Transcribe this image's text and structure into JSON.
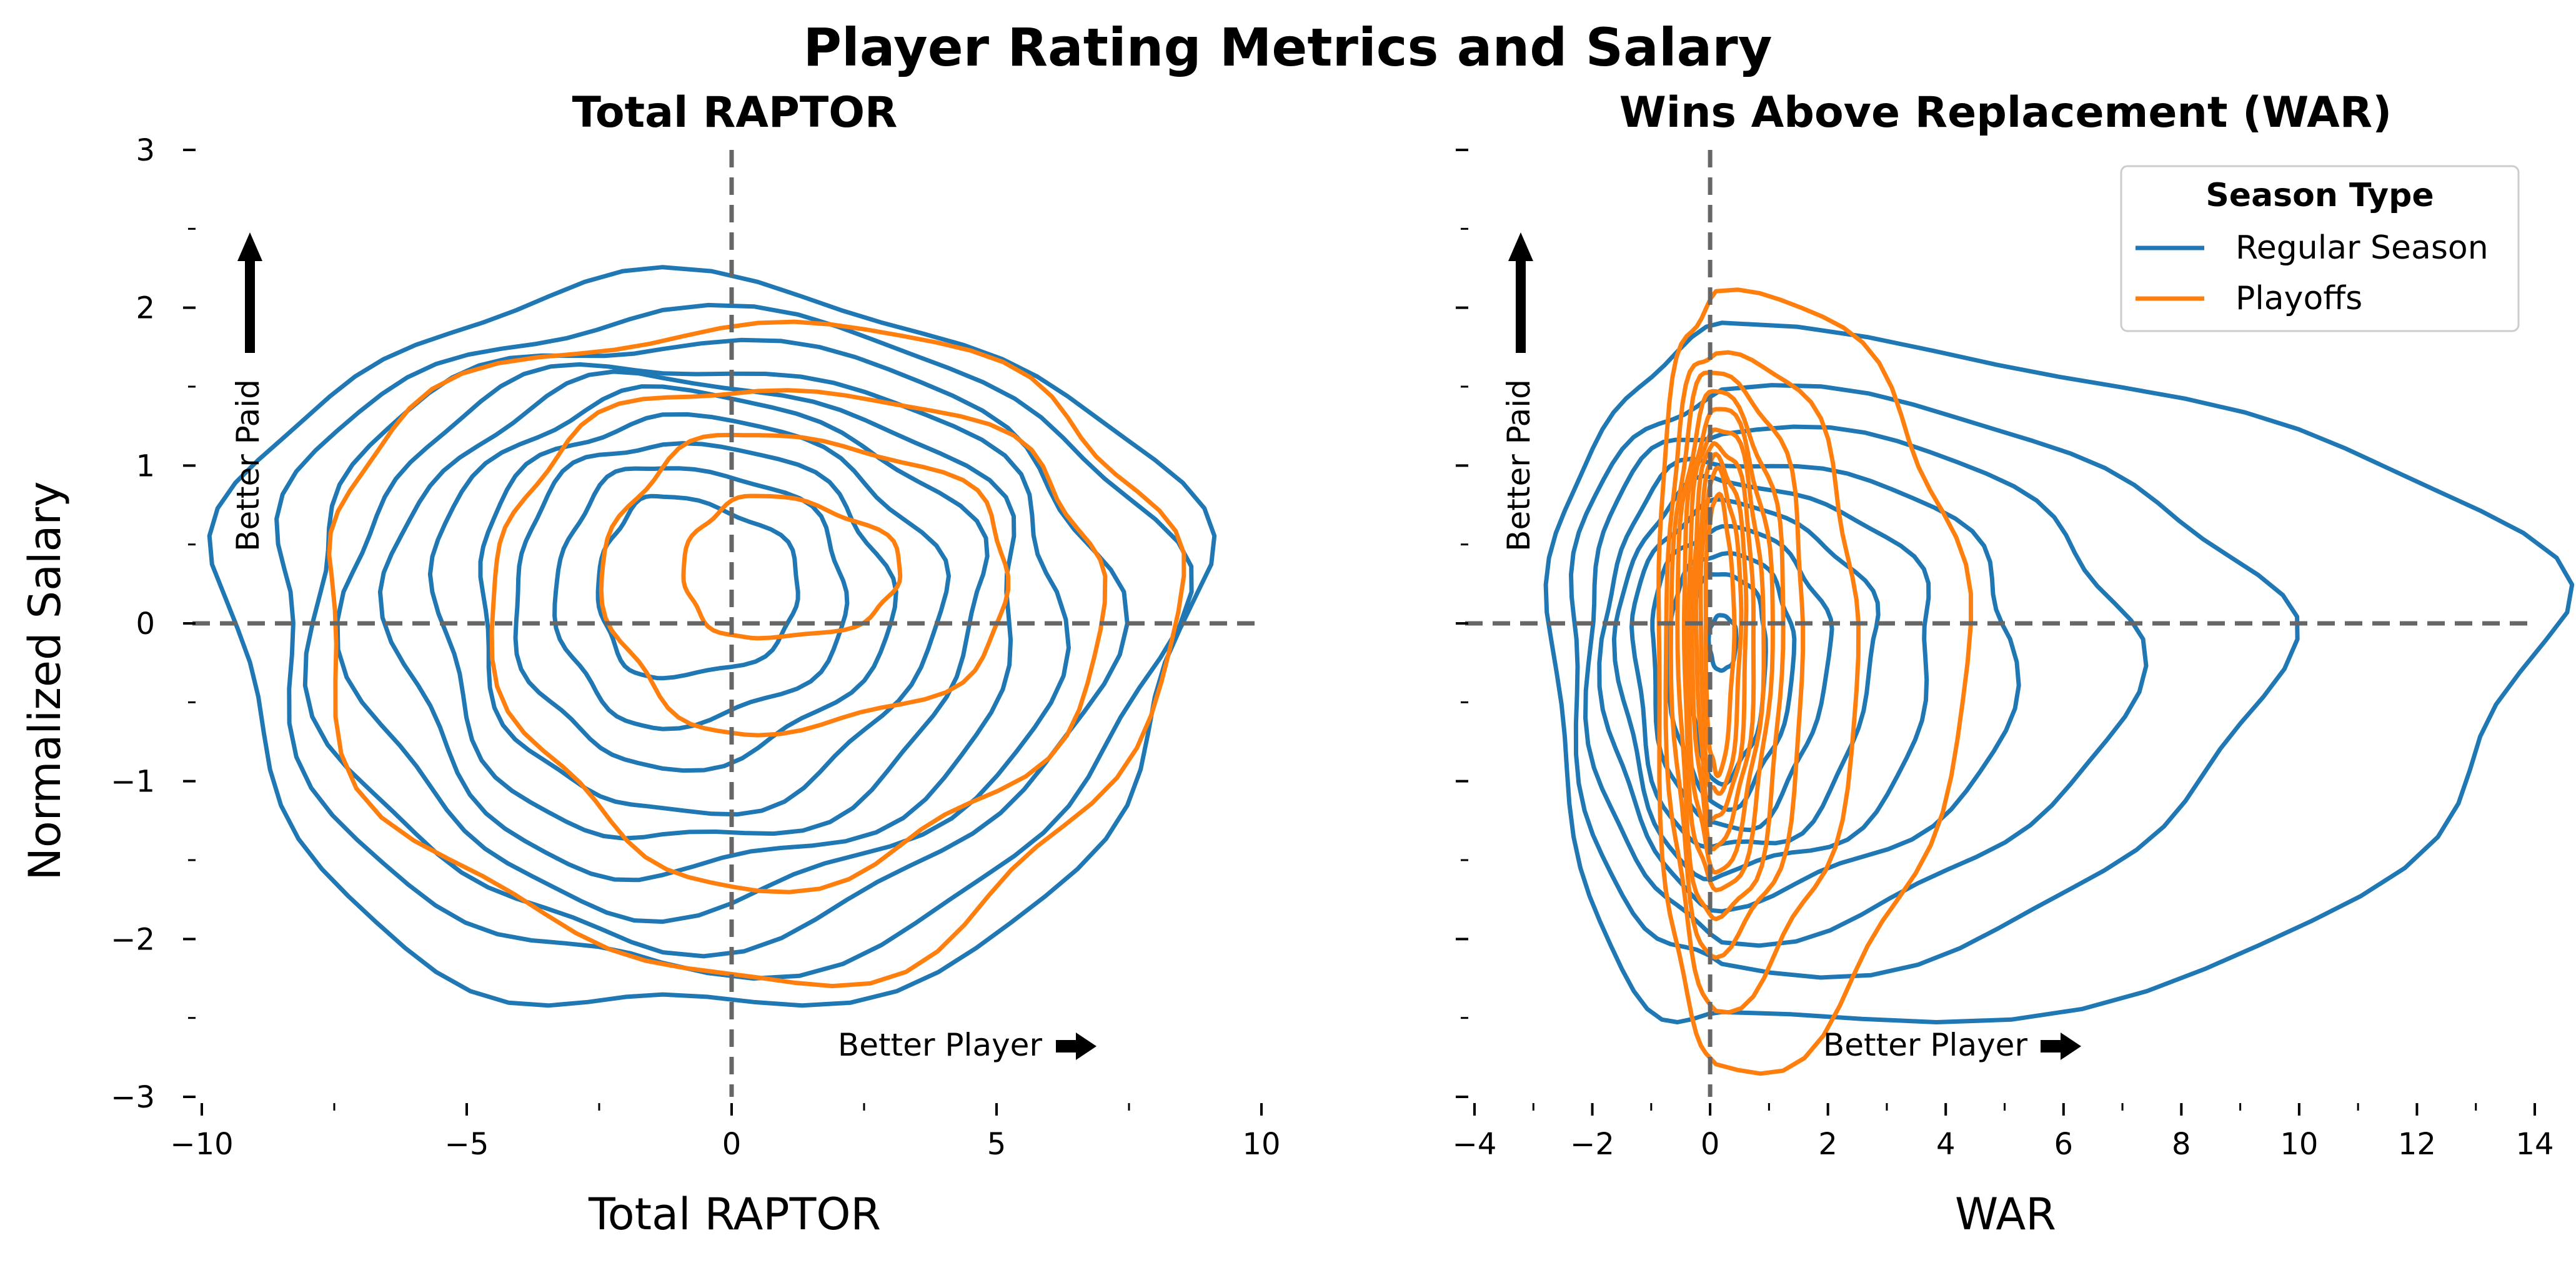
{
  "suptitle": "Player Rating Metrics and Salary",
  "colors": {
    "regular": "#1f77b4",
    "playoffs": "#ff7f0e",
    "refline": "#666666",
    "arrow": "#000000"
  },
  "annotations": {
    "better_player": "Better Player",
    "better_paid": "Better Paid"
  },
  "legend": {
    "title": "Season Type",
    "entries": [
      {
        "label": "Regular Season",
        "color": "#1f77b4"
      },
      {
        "label": "Playoffs",
        "color": "#ff7f0e"
      }
    ]
  },
  "chart_data": [
    {
      "type": "kde-contour",
      "title": "Total RAPTOR",
      "xlabel": "Total RAPTOR",
      "ylabel": "Normalized Salary",
      "xlim": [
        -10,
        10
      ],
      "ylim": [
        -3,
        3
      ],
      "xticks": [
        -10,
        -5,
        0,
        5,
        10
      ],
      "xtick_labels": [
        "−10",
        "−5",
        "0",
        "5",
        "10"
      ],
      "yticks": [
        -3,
        -2,
        -1,
        0,
        1,
        2,
        3
      ],
      "ytick_labels": [
        "−3",
        "−2",
        "−1",
        "0",
        "1",
        "2",
        "3"
      ],
      "reference_lines": {
        "x": 0,
        "y": 0
      },
      "legend": false,
      "series": [
        {
          "name": "Regular Season",
          "color": "#1f77b4",
          "center": [
            -1.3,
            0.2
          ],
          "levels": [
            {
              "rx": [
                8.3,
                10.1
              ],
              "ry": [
                2.7,
                1.95
              ]
            },
            {
              "rx": [
                7.4,
                9.5
              ],
              "ry": [
                2.4,
                1.75
              ]
            },
            {
              "rx": [
                6.7,
                8.4
              ],
              "ry": [
                2.2,
                1.6
              ]
            },
            {
              "rx": [
                5.9,
                7.6
              ],
              "ry": [
                2.0,
                1.45
              ]
            },
            {
              "rx": [
                5.1,
                6.8
              ],
              "ry": [
                1.8,
                1.35
              ]
            },
            {
              "rx": [
                4.3,
                6.0
              ],
              "ry": [
                1.6,
                1.25
              ]
            },
            {
              "rx": [
                3.5,
                5.2
              ],
              "ry": [
                1.4,
                1.1
              ]
            },
            {
              "rx": [
                2.8,
                4.3
              ],
              "ry": [
                1.1,
                0.95
              ]
            },
            {
              "rx": [
                2.0,
                3.5
              ],
              "ry": [
                0.85,
                0.8
              ]
            },
            {
              "rx": [
                1.2,
                2.6
              ],
              "ry": [
                0.55,
                0.6
              ]
            }
          ]
        },
        {
          "name": "Playoffs",
          "color": "#ff7f0e",
          "center": [
            0.5,
            0.3
          ],
          "levels": [
            {
              "rx": [
                8.3,
                7.8
              ],
              "ry": [
                2.55,
                1.6
              ]
            },
            {
              "rx": [
                5.0,
                6.5
              ],
              "ry": [
                1.95,
                1.2
              ]
            },
            {
              "rx": [
                2.9,
                4.8
              ],
              "ry": [
                1.0,
                0.9
              ]
            },
            {
              "rx": [
                1.4,
                2.7
              ],
              "ry": [
                0.4,
                0.5
              ]
            }
          ]
        }
      ]
    },
    {
      "type": "kde-contour",
      "title": "Wins Above Replacement (WAR)",
      "xlabel": "WAR",
      "xlim": [
        -4,
        14
      ],
      "ylim": [
        -3,
        3
      ],
      "xticks": [
        -4,
        -2,
        0,
        2,
        4,
        6,
        8,
        10,
        12,
        14
      ],
      "xtick_labels": [
        "−4",
        "−2",
        "0",
        "2",
        "4",
        "6",
        "8",
        "10",
        "12",
        "14"
      ],
      "yticks": [
        -3,
        -2,
        -1,
        0,
        1,
        2,
        3
      ],
      "reference_lines": {
        "x": 0,
        "y": 0
      },
      "legend": true,
      "series": [
        {
          "name": "Regular Season",
          "color": "#1f77b4",
          "center": [
            0.2,
            -0.1
          ],
          "levels": [
            {
              "rx": [
                2.9,
                14.0
              ],
              "ry": [
                2.5,
                1.9
              ]
            },
            {
              "rx": [
                2.6,
                9.3
              ],
              "ry": [
                2.1,
                1.55
              ]
            },
            {
              "rx": [
                2.3,
                6.9
              ],
              "ry": [
                1.85,
                1.35
              ]
            },
            {
              "rx": [
                2.0,
                5.0
              ],
              "ry": [
                1.65,
                1.15
              ]
            },
            {
              "rx": [
                1.75,
                3.6
              ],
              "ry": [
                1.5,
                1.0
              ]
            },
            {
              "rx": [
                1.5,
                2.6
              ],
              "ry": [
                1.35,
                0.85
              ]
            },
            {
              "rx": [
                1.2,
                1.8
              ],
              "ry": [
                1.2,
                0.7
              ]
            },
            {
              "rx": [
                0.9,
                1.2
              ],
              "ry": [
                1.05,
                0.55
              ]
            },
            {
              "rx": [
                0.6,
                0.75
              ],
              "ry": [
                0.9,
                0.42
              ]
            },
            {
              "rx": [
                0.22,
                0.25
              ],
              "ry": [
                0.2,
                0.15
              ]
            }
          ]
        },
        {
          "name": "Playoffs",
          "color": "#ff7f0e",
          "center": [
            0.1,
            0.0
          ],
          "levels": [
            {
              "rx": [
                1.0,
                4.2
              ],
              "ry": [
                2.8,
                2.1
              ]
            },
            {
              "rx": [
                0.85,
                2.4
              ],
              "ry": [
                2.4,
                1.75
              ]
            },
            {
              "rx": [
                0.75,
                1.5
              ],
              "ry": [
                2.1,
                1.6
              ]
            },
            {
              "rx": [
                0.65,
                1.15
              ],
              "ry": [
                1.9,
                1.45
              ]
            },
            {
              "rx": [
                0.55,
                0.95
              ],
              "ry": [
                1.7,
                1.35
              ]
            },
            {
              "rx": [
                0.48,
                0.8
              ],
              "ry": [
                1.55,
                1.25
              ]
            },
            {
              "rx": [
                0.4,
                0.65
              ],
              "ry": [
                1.4,
                1.15
              ]
            },
            {
              "rx": [
                0.33,
                0.52
              ],
              "ry": [
                1.25,
                1.05
              ]
            },
            {
              "rx": [
                0.26,
                0.42
              ],
              "ry": [
                1.1,
                0.95
              ]
            },
            {
              "rx": [
                0.18,
                0.3
              ],
              "ry": [
                0.95,
                0.8
              ]
            }
          ]
        }
      ]
    }
  ]
}
